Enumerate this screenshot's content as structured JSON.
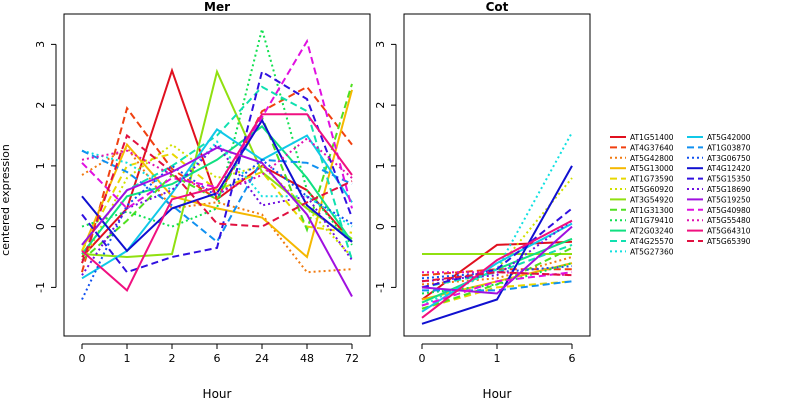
{
  "figure": {
    "ylabel": "centered expression"
  },
  "legend": {
    "entries": [
      {
        "label": "AT1G51400",
        "color": "#E0101F",
        "dash": "solid"
      },
      {
        "label": "AT4G37640",
        "color": "#F04010",
        "dash": "dashed"
      },
      {
        "label": "AT5G42800",
        "color": "#F07A10",
        "dash": "dotted"
      },
      {
        "label": "AT5G13000",
        "color": "#F5B800",
        "dash": "solid"
      },
      {
        "label": "AT1G73590",
        "color": "#E8D800",
        "dash": "dashed"
      },
      {
        "label": "AT5G60920",
        "color": "#D0E000",
        "dash": "dotted"
      },
      {
        "label": "AT3G54920",
        "color": "#90E010",
        "dash": "solid"
      },
      {
        "label": "AT1G31300",
        "color": "#50E020",
        "dash": "dashed"
      },
      {
        "label": "AT1G79410",
        "color": "#10E050",
        "dash": "dotted"
      },
      {
        "label": "AT2G03240",
        "color": "#10E080",
        "dash": "solid"
      },
      {
        "label": "AT4G25570",
        "color": "#10E0B0",
        "dash": "dashed"
      },
      {
        "label": "AT5G27360",
        "color": "#10E0E0",
        "dash": "dotted"
      },
      {
        "label": "AT5G42000",
        "color": "#10C8E8",
        "dash": "solid"
      },
      {
        "label": "AT1G03870",
        "color": "#1090F0",
        "dash": "dashed"
      },
      {
        "label": "AT3G06750",
        "color": "#1050F0",
        "dash": "dotted"
      },
      {
        "label": "AT4G12420",
        "color": "#1010D0",
        "dash": "solid"
      },
      {
        "label": "AT5G15350",
        "color": "#3010E0",
        "dash": "dashed"
      },
      {
        "label": "AT5G18690",
        "color": "#7010E0",
        "dash": "dotted"
      },
      {
        "label": "AT5G19250",
        "color": "#A010E0",
        "dash": "solid"
      },
      {
        "label": "AT5G40980",
        "color": "#E010E0",
        "dash": "dashed"
      },
      {
        "label": "AT5G55480",
        "color": "#E010B0",
        "dash": "dotted"
      },
      {
        "label": "AT5G64310",
        "color": "#F01080",
        "dash": "solid"
      },
      {
        "label": "AT5G65390",
        "color": "#E01040",
        "dash": "dashed"
      }
    ]
  },
  "chart_data": [
    {
      "type": "line",
      "title": "Mer",
      "xlabel": "Hour",
      "ylabel": "centered expression",
      "categories": [
        "0",
        "1",
        "2",
        "6",
        "24",
        "48",
        "72"
      ],
      "ylim": [
        -1.8,
        3.5
      ],
      "yticks": [
        -1,
        0,
        1,
        2,
        3
      ],
      "series": [
        {
          "name": "AT1G51400",
          "values": [
            -0.5,
            0.3,
            2.57,
            0.45,
            1.0,
            0.6,
            -0.25
          ]
        },
        {
          "name": "AT4G37640",
          "values": [
            -0.75,
            1.95,
            0.95,
            0.45,
            1.9,
            2.3,
            1.35
          ]
        },
        {
          "name": "AT5G42800",
          "values": [
            0.85,
            1.3,
            0.3,
            0.4,
            0.2,
            -0.75,
            -0.7
          ]
        },
        {
          "name": "AT5G13000",
          "values": [
            -0.4,
            1.35,
            0.5,
            0.3,
            0.15,
            -0.5,
            2.25
          ]
        },
        {
          "name": "AT1G73590",
          "values": [
            -0.4,
            1.0,
            1.2,
            0.6,
            0.9,
            0.0,
            -0.1
          ]
        },
        {
          "name": "AT5G60920",
          "values": [
            -0.6,
            0.8,
            1.35,
            0.8,
            1.0,
            0.3,
            -0.5
          ]
        },
        {
          "name": "AT3G54920",
          "values": [
            -0.45,
            -0.5,
            -0.45,
            2.55,
            0.9,
            0.3,
            -0.2
          ]
        },
        {
          "name": "AT1G31300",
          "values": [
            -0.55,
            0.1,
            0.85,
            0.45,
            1.8,
            -0.05,
            2.35
          ]
        },
        {
          "name": "AT1G79410",
          "values": [
            0.0,
            0.25,
            0.0,
            0.3,
            3.25,
            0.6,
            -0.3
          ]
        },
        {
          "name": "AT2G03240",
          "values": [
            -0.45,
            0.5,
            0.7,
            1.1,
            1.65,
            0.8,
            -0.25
          ]
        },
        {
          "name": "AT4G25570",
          "values": [
            -0.3,
            0.6,
            1.0,
            1.5,
            2.3,
            1.9,
            -0.55
          ]
        },
        {
          "name": "AT5G27360",
          "values": [
            1.25,
            1.05,
            0.6,
            1.4,
            0.5,
            0.5,
            0.0
          ]
        },
        {
          "name": "AT5G42000",
          "values": [
            -0.85,
            -0.4,
            0.55,
            1.6,
            1.1,
            1.5,
            0.4
          ]
        },
        {
          "name": "AT1G03870",
          "values": [
            1.25,
            0.9,
            0.35,
            -0.25,
            1.1,
            1.05,
            0.7
          ]
        },
        {
          "name": "AT3G06750",
          "values": [
            -1.2,
            0.35,
            1.0,
            0.5,
            1.1,
            0.5,
            0.05
          ]
        },
        {
          "name": "AT4G12420",
          "values": [
            0.5,
            -0.4,
            0.3,
            0.55,
            1.75,
            0.35,
            -0.25
          ]
        },
        {
          "name": "AT5G15350",
          "values": [
            0.2,
            -0.75,
            -0.5,
            -0.35,
            2.55,
            2.1,
            0.15
          ]
        },
        {
          "name": "AT5G18690",
          "values": [
            -0.8,
            0.3,
            0.6,
            1.35,
            0.35,
            0.5,
            -0.55
          ]
        },
        {
          "name": "AT5G19250",
          "values": [
            -0.3,
            0.6,
            0.9,
            1.3,
            1.05,
            0.2,
            -1.15
          ]
        },
        {
          "name": "AT5G40980",
          "values": [
            1.05,
            0.3,
            0.8,
            0.65,
            1.8,
            3.05,
            0.3
          ]
        },
        {
          "name": "AT5G55480",
          "values": [
            1.1,
            1.25,
            0.85,
            0.55,
            0.85,
            1.45,
            0.8
          ]
        },
        {
          "name": "AT5G64310",
          "values": [
            -0.4,
            -1.05,
            0.45,
            0.65,
            1.85,
            1.85,
            0.85
          ]
        },
        {
          "name": "AT5G65390",
          "values": [
            -0.6,
            1.5,
            0.9,
            0.05,
            0.0,
            0.4,
            0.75
          ]
        }
      ]
    },
    {
      "type": "line",
      "title": "Cot",
      "xlabel": "Hour",
      "categories": [
        "0",
        "1",
        "6"
      ],
      "ylim": [
        -1.8,
        3.5
      ],
      "yticks": [
        -1,
        0,
        1,
        2,
        3
      ],
      "series": [
        {
          "name": "AT1G51400",
          "values": [
            -1.2,
            -0.3,
            -0.25
          ]
        },
        {
          "name": "AT4G37640",
          "values": [
            -0.8,
            -0.7,
            -0.7
          ]
        },
        {
          "name": "AT5G42800",
          "values": [
            -0.95,
            -0.85,
            -0.5
          ]
        },
        {
          "name": "AT5G13000",
          "values": [
            -1.2,
            -0.9,
            -0.6
          ]
        },
        {
          "name": "AT1G73590",
          "values": [
            -1.35,
            -1.0,
            -0.9
          ]
        },
        {
          "name": "AT5G60920",
          "values": [
            -1.3,
            -0.7,
            0.8
          ]
        },
        {
          "name": "AT3G54920",
          "values": [
            -0.45,
            -0.45,
            -0.45
          ]
        },
        {
          "name": "AT1G31300",
          "values": [
            -1.35,
            -0.95,
            -0.35
          ]
        },
        {
          "name": "AT1G79410",
          "values": [
            -1.1,
            -0.95,
            -0.6
          ]
        },
        {
          "name": "AT2G03240",
          "values": [
            -1.25,
            -0.7,
            -0.2
          ]
        },
        {
          "name": "AT4G25570",
          "values": [
            -1.0,
            -0.75,
            -0.3
          ]
        },
        {
          "name": "AT5G27360",
          "values": [
            -1.3,
            -0.7,
            1.55
          ]
        },
        {
          "name": "AT5G42000",
          "values": [
            -1.4,
            -0.6,
            0.05
          ]
        },
        {
          "name": "AT1G03870",
          "values": [
            -1.05,
            -1.05,
            -0.9
          ]
        },
        {
          "name": "AT3G06750",
          "values": [
            -0.85,
            -0.75,
            -0.65
          ]
        },
        {
          "name": "AT4G12420",
          "values": [
            -1.6,
            -1.2,
            1.0
          ]
        },
        {
          "name": "AT5G15350",
          "values": [
            -1.0,
            -0.7,
            0.3
          ]
        },
        {
          "name": "AT5G18690",
          "values": [
            -0.9,
            -0.8,
            0.1
          ]
        },
        {
          "name": "AT5G19250",
          "values": [
            -1.0,
            -1.1,
            0.0
          ]
        },
        {
          "name": "AT5G40980",
          "values": [
            -1.3,
            -0.9,
            -0.75
          ]
        },
        {
          "name": "AT5G55480",
          "values": [
            -0.75,
            -0.75,
            -0.8
          ]
        },
        {
          "name": "AT5G64310",
          "values": [
            -1.5,
            -0.55,
            0.1
          ]
        },
        {
          "name": "AT5G65390",
          "values": [
            -0.9,
            -0.75,
            -0.8
          ]
        }
      ]
    }
  ]
}
